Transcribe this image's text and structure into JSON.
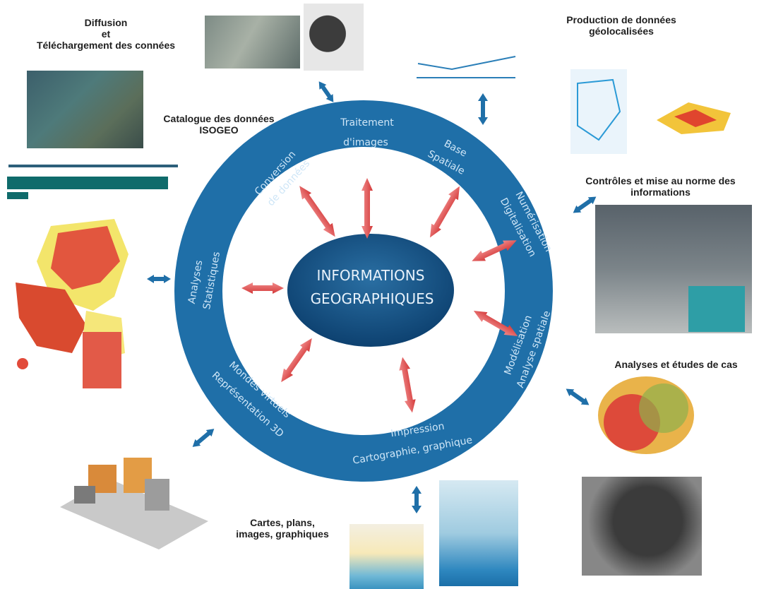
{
  "center": {
    "line1": "INFORMATIONS",
    "line2": "GEOGRAPHIQUES"
  },
  "ring_segments": {
    "traitement_line1": "Traitement",
    "traitement_line2": "d'images",
    "base_line1": "Base",
    "base_line2": "Spatiale",
    "numerisation_line1": "Numérisation",
    "numerisation_line2": "Digitalisation",
    "modelisation_line1": "Modélisation",
    "modelisation_line2": "Analyse spatiale",
    "impression_line1": "Impression",
    "impression_line2": "Cartographie, graphique",
    "mondes_line1": "Mondes virtuels",
    "mondes_line2": "Représentation 3D",
    "analyses_line1": "Analyses",
    "analyses_line2": "Statistiques",
    "conversion_line1": "Conversion",
    "conversion_line2": "de données"
  },
  "outer_labels": {
    "diffusion_line1": "Diffusion",
    "diffusion_line2": "et",
    "diffusion_line3": "Téléchargement des connées",
    "catalogue_line1": "Catalogue des données",
    "catalogue_line2": "ISOGEO",
    "production_line1": "Production de données",
    "production_line2": "géolocalisées",
    "controles_line1": "Contrôles et mise au norme des",
    "controles_line2": "informations",
    "analyses_cas": "Analyses et études de cas",
    "cartes_line1": "Cartes, plans,",
    "cartes_line2": "images, graphiques"
  },
  "colors": {
    "ring": "#1f6fa8",
    "ring_dark": "#0e4f85",
    "center": "#16507f",
    "arrow_red": "#e04a4a",
    "arrow_blue": "#1f6fa8"
  }
}
